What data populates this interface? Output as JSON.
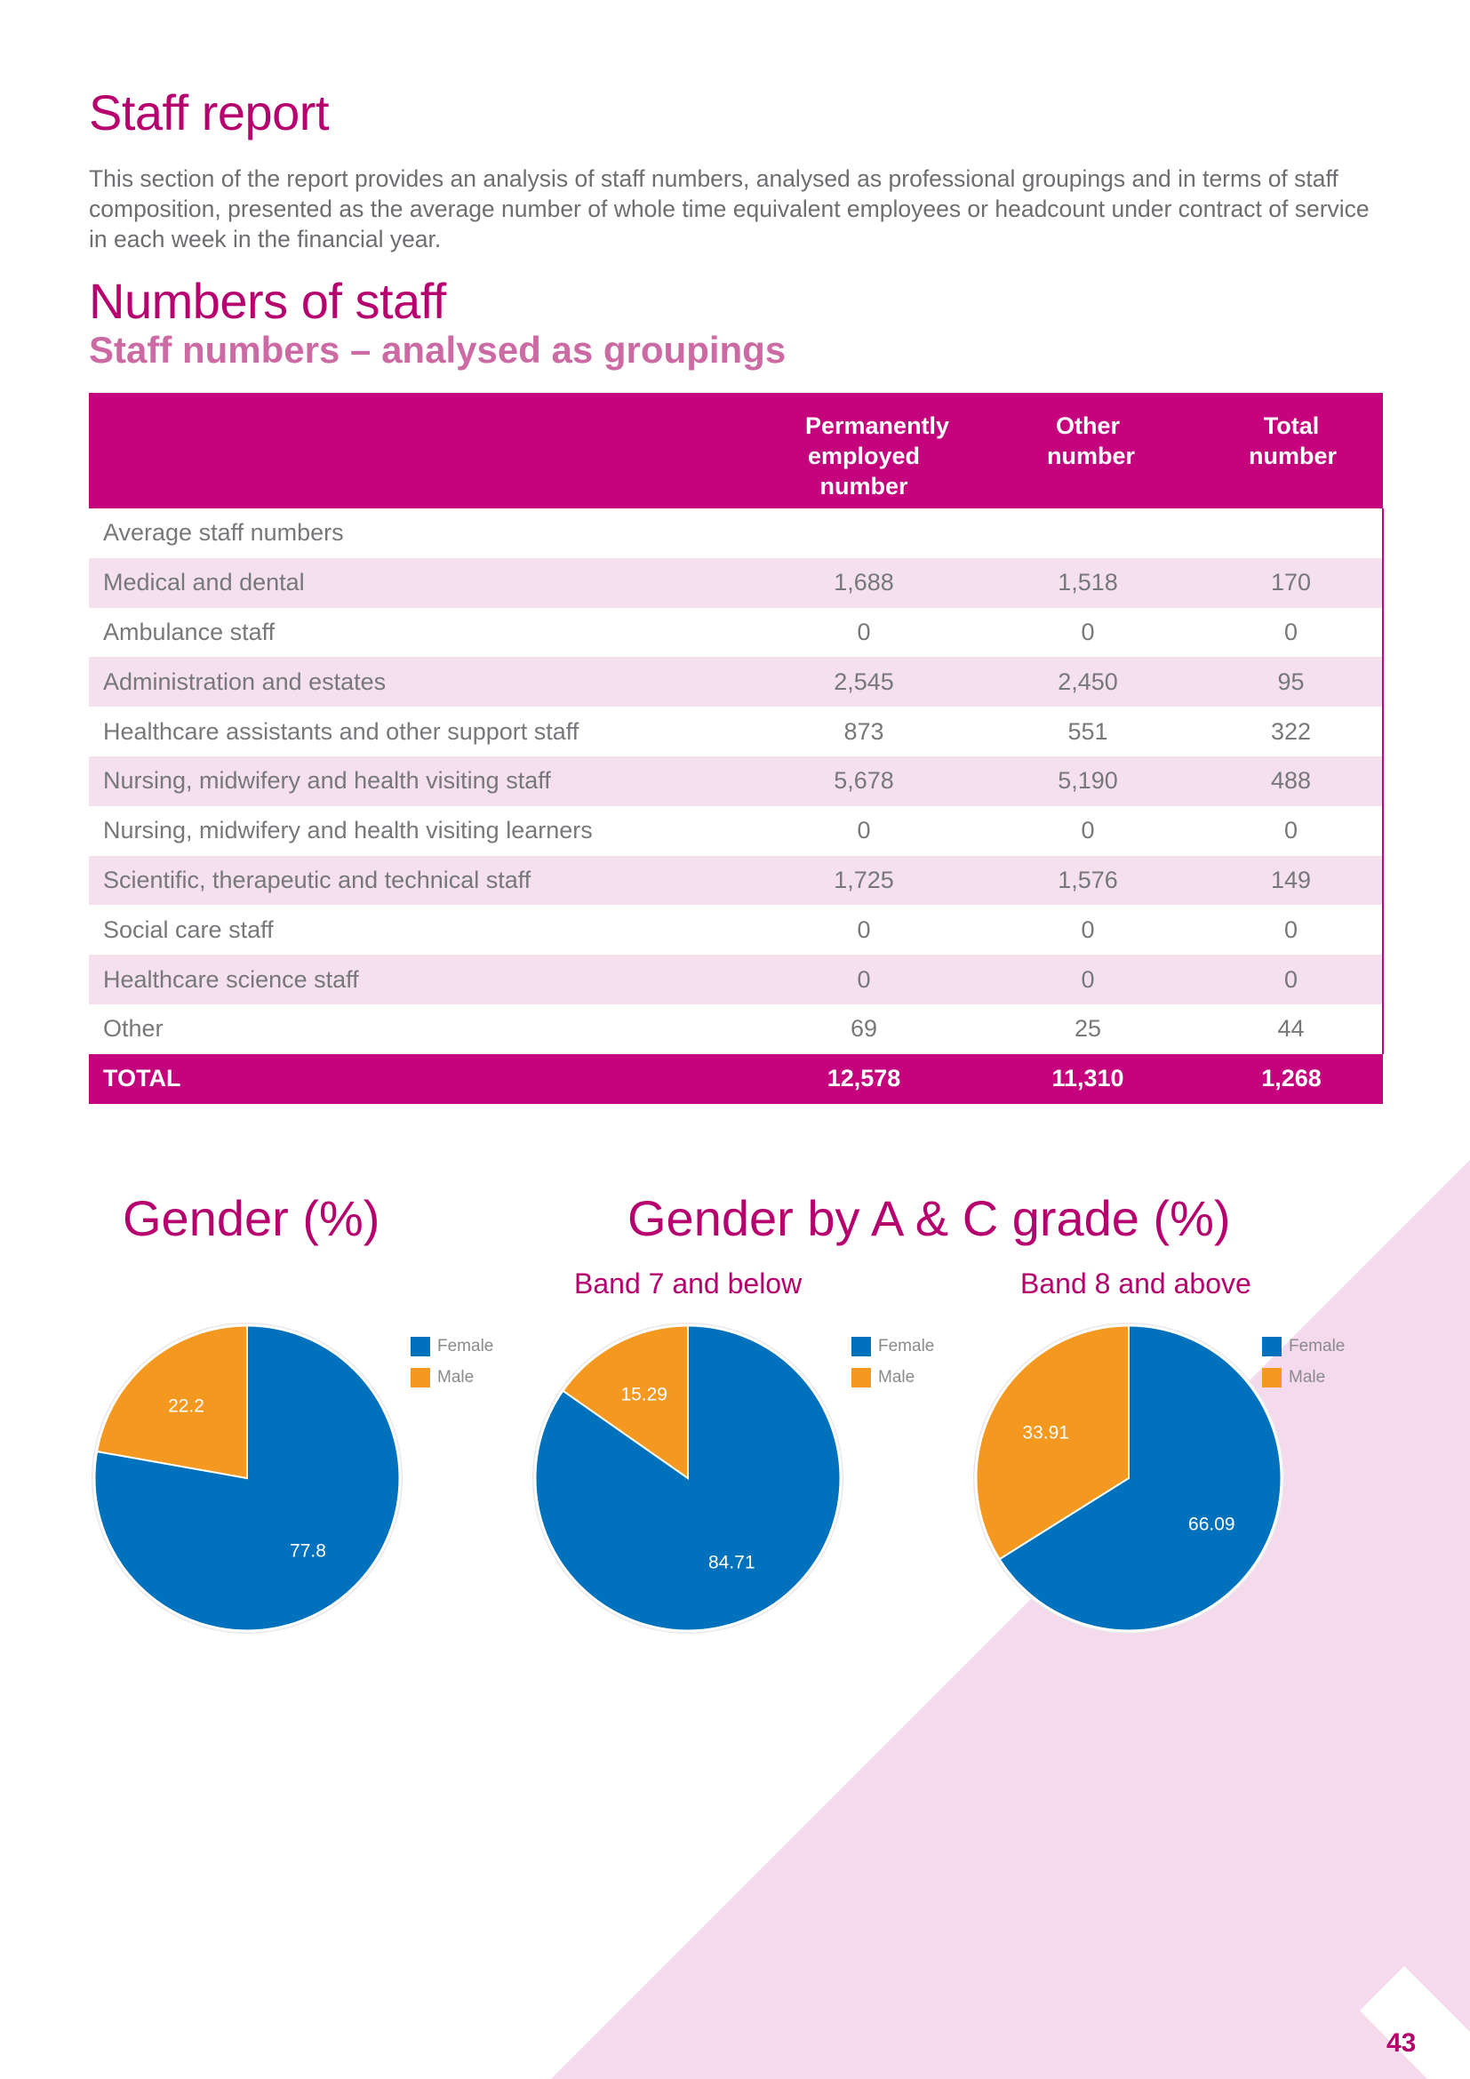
{
  "page": {
    "title": "Staff report",
    "intro": "This section of the report provides an analysis of staff numbers, analysed as professional groupings and in terms of staff composition, presented as the average number of whole time equivalent employees or headcount under contract of service in each week in the financial year.",
    "section_title": "Numbers of staff",
    "subtitle": "Staff numbers – analysed as groupings",
    "page_number": "43"
  },
  "table": {
    "headers": [
      "",
      "Permanently employed number",
      "Other number",
      "Total number"
    ],
    "group_label": "Average staff numbers",
    "rows": [
      {
        "label": "Medical and dental",
        "permanent": "1,688",
        "other": "1,518",
        "total": "170"
      },
      {
        "label": "Ambulance staff",
        "permanent": "0",
        "other": "0",
        "total": "0"
      },
      {
        "label": "Administration and estates",
        "permanent": "2,545",
        "other": "2,450",
        "total": "95"
      },
      {
        "label": "Healthcare assistants and other support staff",
        "permanent": "873",
        "other": "551",
        "total": "322"
      },
      {
        "label": "Nursing, midwifery and health visiting staff",
        "permanent": "5,678",
        "other": "5,190",
        "total": "488"
      },
      {
        "label": "Nursing, midwifery and health visiting learners",
        "permanent": "0",
        "other": "0",
        "total": "0"
      },
      {
        "label": "Scientific, therapeutic and technical staff",
        "permanent": "1,725",
        "other": "1,576",
        "total": "149"
      },
      {
        "label": "Social care staff",
        "permanent": "0",
        "other": "0",
        "total": "0"
      },
      {
        "label": "Healthcare science staff",
        "permanent": "0",
        "other": "0",
        "total": "0"
      },
      {
        "label": "Other",
        "permanent": "69",
        "other": "25",
        "total": "44"
      }
    ],
    "total": {
      "label": "TOTAL",
      "permanent": "12,578",
      "other": "11,310",
      "total": "1,268"
    }
  },
  "charts": {
    "gender_title": "Gender (%)",
    "grade_title": "Gender by A & C grade (%)"
  },
  "colors": {
    "magenta": "#c4037c",
    "female": "#0071bd",
    "male": "#f4981f",
    "pink_bg": "#f5d9ec"
  },
  "chart_data": [
    {
      "type": "pie",
      "title": "Gender (%)",
      "categories": [
        "Female",
        "Male"
      ],
      "values": [
        77.8,
        22.2
      ],
      "labels": [
        "77.8",
        "22.2"
      ],
      "colors": [
        "#0071bd",
        "#f4981f"
      ],
      "legend": "right"
    },
    {
      "type": "pie",
      "title": "Band 7 and below",
      "categories": [
        "Female",
        "Male"
      ],
      "values": [
        84.71,
        15.29
      ],
      "labels": [
        "84.71",
        "15.29"
      ],
      "colors": [
        "#0071bd",
        "#f4981f"
      ],
      "legend": "right"
    },
    {
      "type": "pie",
      "title": "Band 8 and above",
      "categories": [
        "Female",
        "Male"
      ],
      "values": [
        66.09,
        33.91
      ],
      "labels": [
        "66.09",
        "33.91"
      ],
      "colors": [
        "#0071bd",
        "#f4981f"
      ],
      "legend": "right"
    }
  ]
}
